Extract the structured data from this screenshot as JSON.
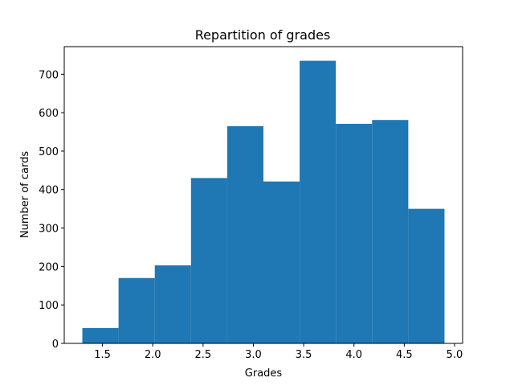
{
  "chart_data": {
    "type": "bar",
    "title": "Repartition of grades",
    "xlabel": "Grades",
    "ylabel": "Number of cards",
    "bin_edges": [
      1.3,
      1.66,
      2.02,
      2.38,
      2.74,
      3.1,
      3.46,
      3.82,
      4.18,
      4.54,
      4.9
    ],
    "values": [
      40,
      170,
      203,
      430,
      565,
      421,
      735,
      571,
      581,
      350
    ],
    "xlim": [
      1.12,
      5.08
    ],
    "ylim": [
      0,
      771.75
    ],
    "xticks": [
      "1.5",
      "2.0",
      "2.5",
      "3.0",
      "3.5",
      "4.0",
      "4.5",
      "5.0"
    ],
    "yticks": [
      "0",
      "100",
      "200",
      "300",
      "400",
      "500",
      "600",
      "700"
    ],
    "grid": false,
    "legend": "none",
    "bar_color": "#1f77b4"
  }
}
